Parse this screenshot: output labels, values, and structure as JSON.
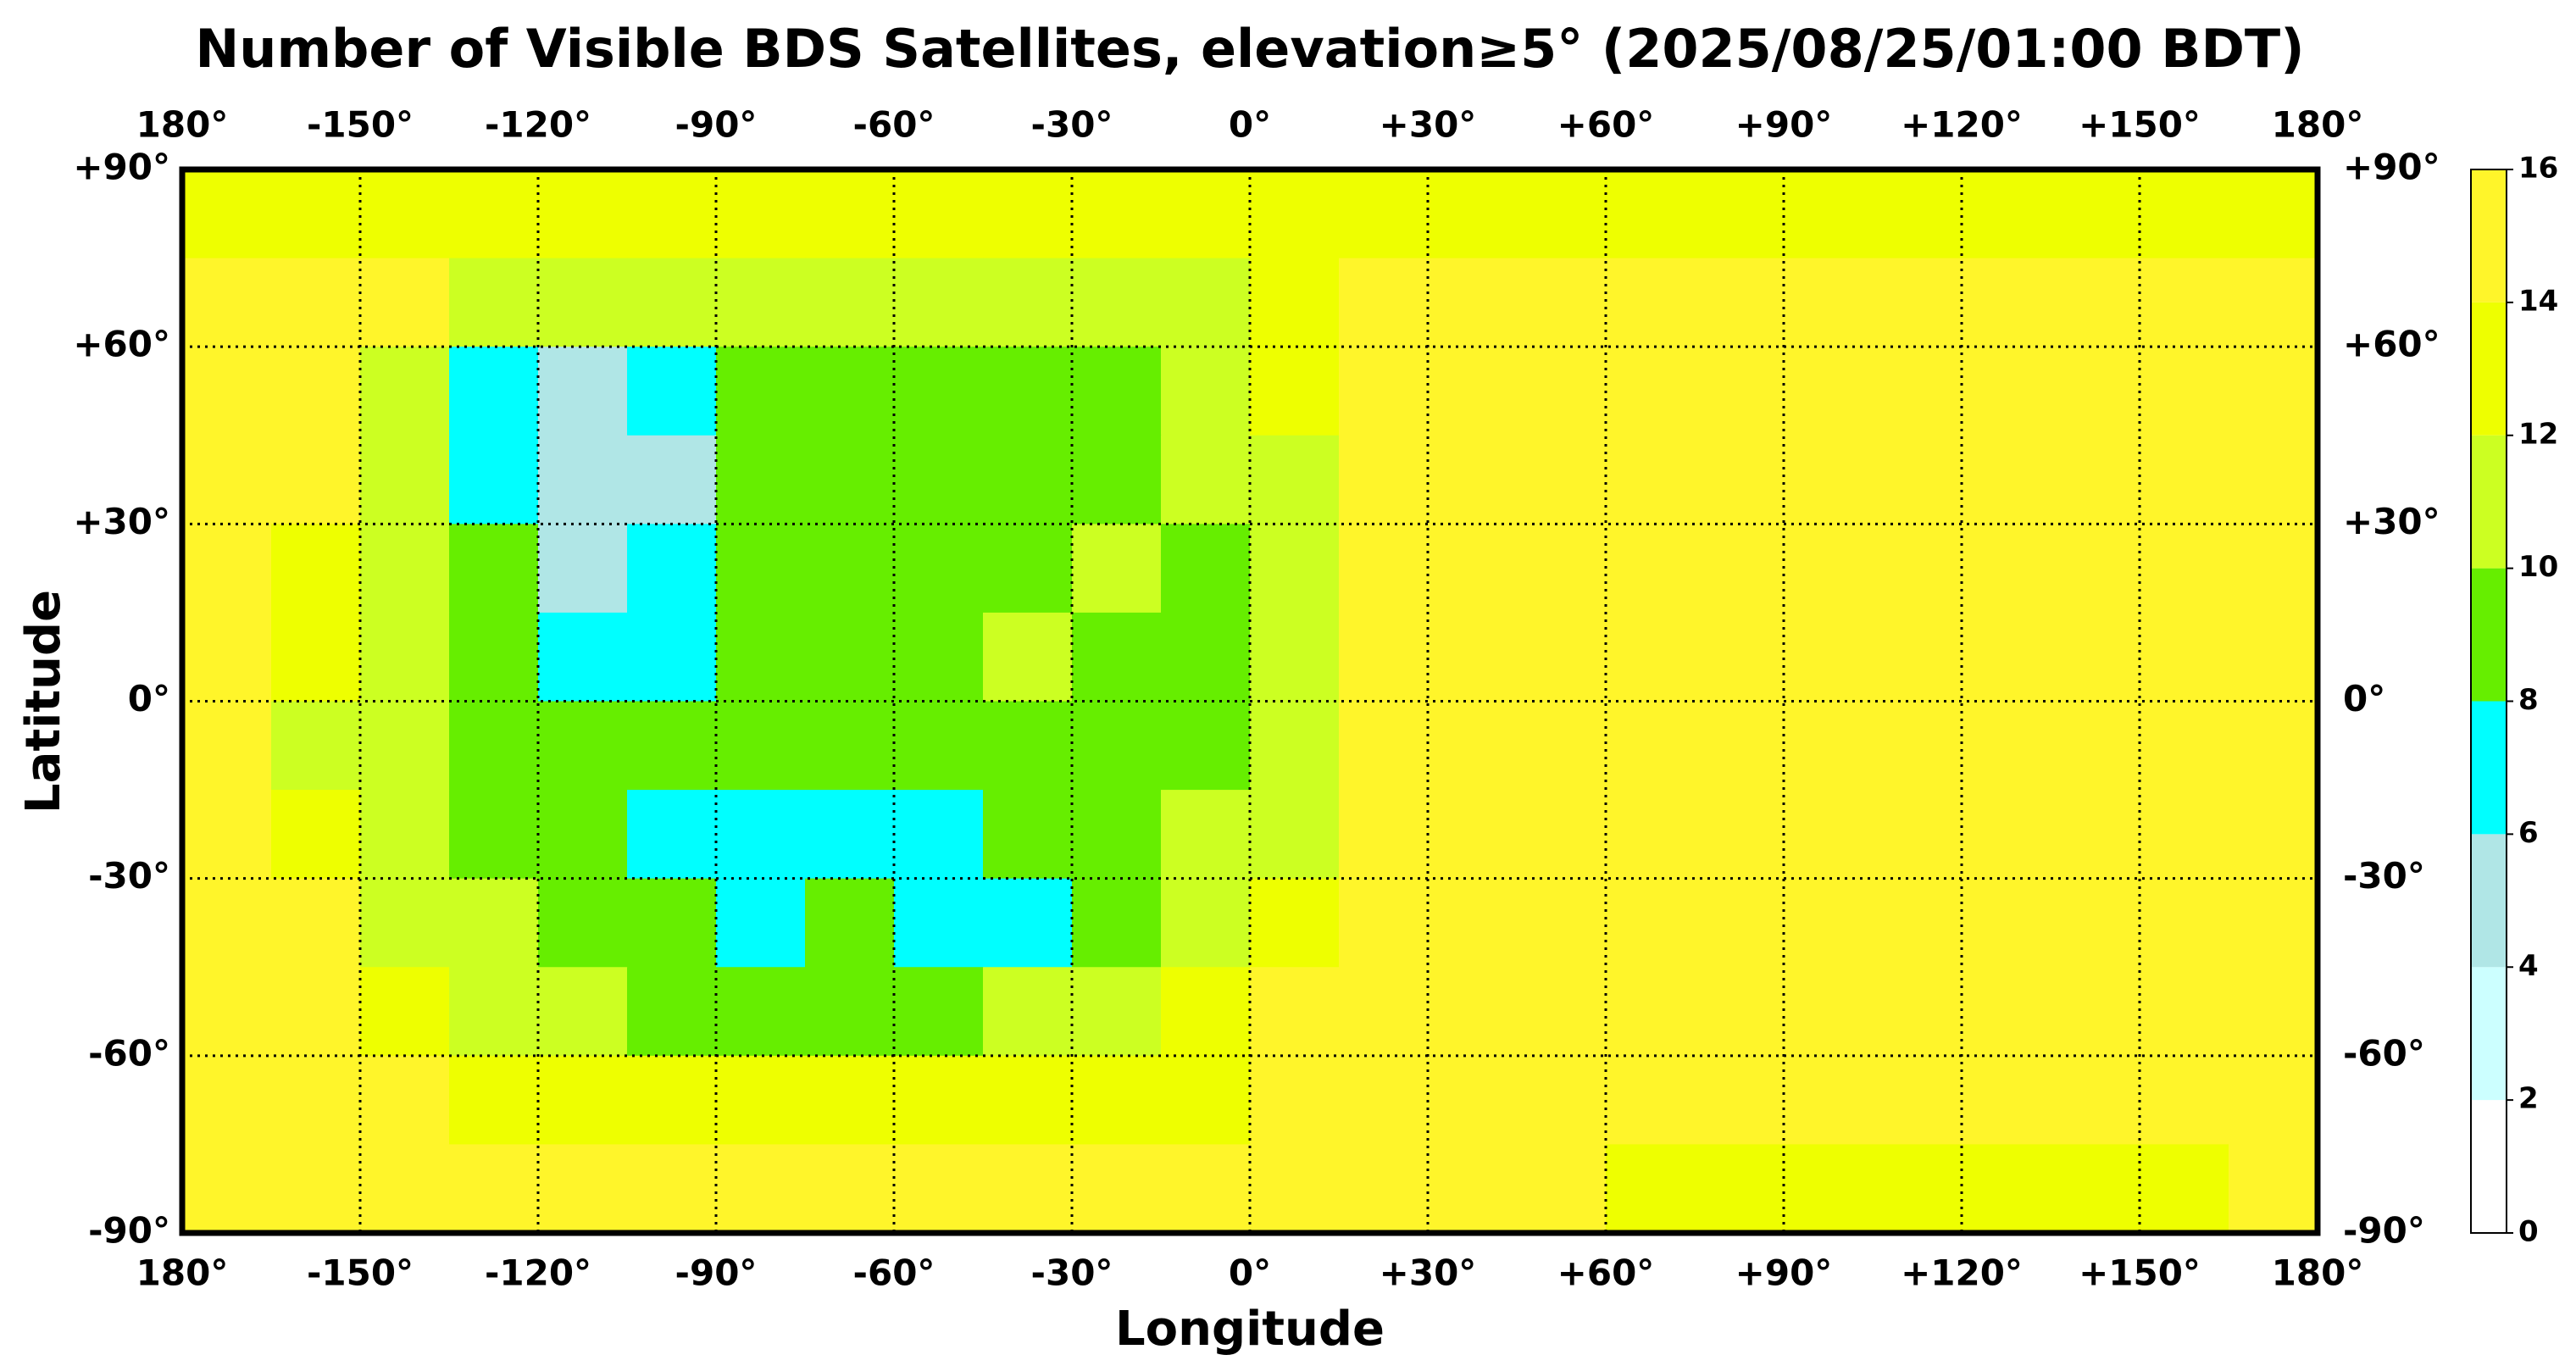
{
  "chart_data": {
    "type": "heatmap",
    "title": "Number of Visible BDS Satellites, elevation≥5° (2025/08/25/01:00 BDT)",
    "xlabel": "Longitude",
    "ylabel": "Latitude",
    "xlim": [
      -180,
      180
    ],
    "ylim": [
      -90,
      90
    ],
    "xticks": [
      {
        "value": -180,
        "label": "180°"
      },
      {
        "value": -150,
        "label": "-150°"
      },
      {
        "value": -120,
        "label": "-120°"
      },
      {
        "value": -90,
        "label": "-90°"
      },
      {
        "value": -60,
        "label": "-60°"
      },
      {
        "value": -30,
        "label": "-30°"
      },
      {
        "value": 0,
        "label": "0°"
      },
      {
        "value": 30,
        "label": "+30°"
      },
      {
        "value": 60,
        "label": "+60°"
      },
      {
        "value": 90,
        "label": "+90°"
      },
      {
        "value": 120,
        "label": "+120°"
      },
      {
        "value": 150,
        "label": "+150°"
      },
      {
        "value": 180,
        "label": "180°"
      }
    ],
    "yticks": [
      {
        "value": 90,
        "label": "+90°"
      },
      {
        "value": 60,
        "label": "+60°"
      },
      {
        "value": 30,
        "label": "+30°"
      },
      {
        "value": 0,
        "label": "0°"
      },
      {
        "value": -30,
        "label": "-30°"
      },
      {
        "value": -60,
        "label": "-60°"
      },
      {
        "value": -90,
        "label": "-90°"
      }
    ],
    "grid": true,
    "z": [
      [
        13,
        13,
        13,
        13,
        13,
        13,
        13,
        13,
        13,
        13,
        13,
        13,
        13,
        13,
        13,
        13,
        13,
        13,
        13,
        13,
        13,
        13,
        13,
        13
      ],
      [
        15,
        15,
        15,
        11,
        11,
        11,
        11,
        11,
        11,
        11,
        11,
        11,
        13,
        15,
        15,
        15,
        15,
        15,
        15,
        15,
        15,
        15,
        15,
        15
      ],
      [
        15,
        15,
        11,
        7,
        5,
        7,
        9,
        9,
        9,
        9,
        9,
        11,
        13,
        15,
        15,
        15,
        15,
        15,
        15,
        15,
        15,
        15,
        15,
        15
      ],
      [
        15,
        15,
        11,
        7,
        5,
        5,
        9,
        9,
        9,
        9,
        9,
        11,
        11,
        15,
        15,
        15,
        15,
        15,
        15,
        15,
        15,
        15,
        15,
        15
      ],
      [
        15,
        13,
        11,
        9,
        5,
        7,
        9,
        9,
        9,
        9,
        11,
        9,
        11,
        15,
        15,
        15,
        15,
        15,
        15,
        15,
        15,
        15,
        15,
        15
      ],
      [
        15,
        13,
        11,
        9,
        7,
        7,
        9,
        9,
        9,
        11,
        9,
        9,
        11,
        15,
        15,
        15,
        15,
        15,
        15,
        15,
        15,
        15,
        15,
        15
      ],
      [
        15,
        11,
        11,
        9,
        9,
        9,
        9,
        9,
        9,
        9,
        9,
        9,
        11,
        15,
        15,
        15,
        15,
        15,
        15,
        15,
        15,
        15,
        15,
        15
      ],
      [
        15,
        13,
        11,
        9,
        9,
        7,
        7,
        7,
        7,
        9,
        9,
        11,
        11,
        15,
        15,
        15,
        15,
        15,
        15,
        15,
        15,
        15,
        15,
        15
      ],
      [
        15,
        15,
        11,
        11,
        9,
        9,
        7,
        9,
        7,
        7,
        9,
        11,
        13,
        15,
        15,
        15,
        15,
        15,
        15,
        15,
        15,
        15,
        15,
        15
      ],
      [
        15,
        15,
        13,
        11,
        11,
        9,
        9,
        9,
        9,
        11,
        11,
        13,
        15,
        15,
        15,
        15,
        15,
        15,
        15,
        15,
        15,
        15,
        15,
        15
      ],
      [
        15,
        15,
        15,
        13,
        13,
        13,
        13,
        13,
        13,
        13,
        13,
        13,
        15,
        15,
        15,
        15,
        15,
        15,
        15,
        15,
        15,
        15,
        15,
        15
      ],
      [
        15,
        15,
        15,
        15,
        15,
        15,
        15,
        15,
        15,
        15,
        15,
        15,
        15,
        15,
        15,
        15,
        13,
        13,
        13,
        13,
        13,
        13,
        13,
        15
      ]
    ],
    "colorbar": {
      "ticks": [
        0,
        2,
        4,
        6,
        8,
        10,
        12,
        14,
        16
      ],
      "colors": [
        "#ffffff",
        "#ccffff",
        "#b0e6e6",
        "#00ffff",
        "#66ee00",
        "#ccff22",
        "#eeff00",
        "#fff52a"
      ]
    }
  }
}
